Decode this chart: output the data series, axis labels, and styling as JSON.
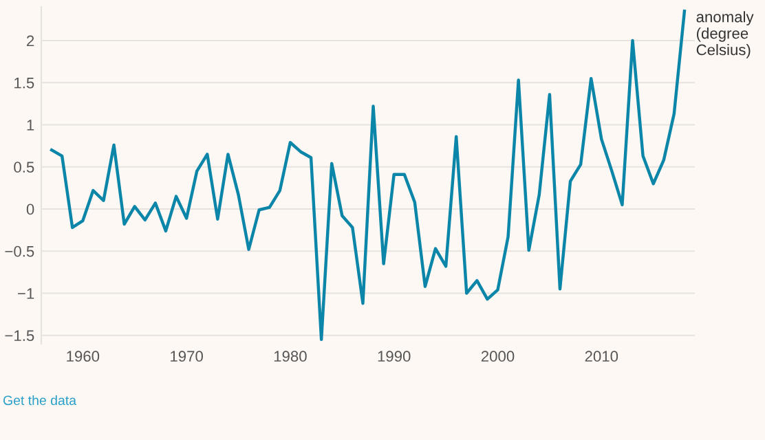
{
  "chart_data": {
    "type": "line",
    "x": [
      1957,
      1958,
      1959,
      1960,
      1961,
      1962,
      1963,
      1964,
      1965,
      1966,
      1967,
      1968,
      1969,
      1970,
      1971,
      1972,
      1973,
      1974,
      1975,
      1976,
      1977,
      1978,
      1979,
      1980,
      1981,
      1982,
      1983,
      1984,
      1985,
      1986,
      1987,
      1988,
      1989,
      1990,
      1991,
      1992,
      1993,
      1994,
      1995,
      1996,
      1997,
      1998,
      1999,
      2000,
      2001,
      2002,
      2003,
      2004,
      2005,
      2006,
      2007,
      2008,
      2009,
      2010,
      2011,
      2012,
      2013,
      2014,
      2015,
      2016,
      2017,
      2018
    ],
    "series": [
      {
        "name": "anomaly (degree Celsius)",
        "color": "#0b86a9",
        "values": [
          0.7,
          0.63,
          -0.22,
          -0.14,
          0.22,
          0.1,
          0.76,
          -0.18,
          0.03,
          -0.13,
          0.07,
          -0.26,
          0.15,
          -0.11,
          0.45,
          0.65,
          -0.12,
          0.65,
          0.17,
          -0.48,
          -0.01,
          0.02,
          0.22,
          0.79,
          0.68,
          0.61,
          -1.55,
          0.54,
          -0.08,
          -0.22,
          -1.12,
          1.22,
          -0.65,
          0.41,
          0.41,
          0.08,
          -0.92,
          -0.47,
          -0.68,
          0.86,
          -1.0,
          -0.85,
          -1.07,
          -0.96,
          -0.33,
          1.53,
          -0.49,
          0.17,
          1.36,
          -0.95,
          0.33,
          0.53,
          1.55,
          0.83,
          0.45,
          0.05,
          2.0,
          0.63,
          0.3,
          0.58,
          1.13,
          2.35
        ]
      }
    ],
    "xlim": [
      1956,
      2019
    ],
    "ylim": [
      -1.6,
      2.4
    ],
    "xticks": [
      1960,
      1970,
      1980,
      1990,
      2000,
      2010
    ],
    "yticks": [
      -1.5,
      -1,
      -0.5,
      0,
      0.5,
      1,
      1.5,
      2
    ],
    "grid": "y",
    "legend": false,
    "marker": "none",
    "line_style": "solid",
    "annotations": [
      "Get the data"
    ]
  }
}
